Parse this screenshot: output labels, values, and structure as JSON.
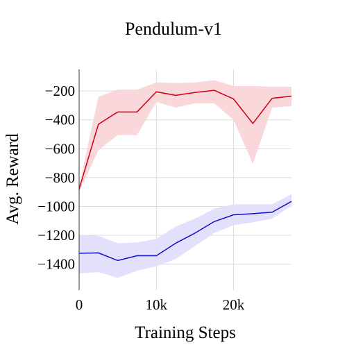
{
  "chart_data": {
    "type": "line",
    "title": "Pendulum-v1",
    "xlabel": "Training Steps",
    "ylabel": "Avg. Reward",
    "xlim": [
      0,
      27500
    ],
    "ylim": [
      -1580,
      -50
    ],
    "x_ticks": [
      0,
      10000,
      20000
    ],
    "x_tick_labels": [
      "0",
      "10k",
      "20k"
    ],
    "y_ticks": [
      -200,
      -400,
      -600,
      -800,
      -1000,
      -1200,
      -1400
    ],
    "y_tick_labels": [
      "−200",
      "−400",
      "−600",
      "−800",
      "−1000",
      "−1200",
      "−1400"
    ],
    "grid": true,
    "legend": "none",
    "series": [
      {
        "color": "#cc0011",
        "band_color": "#f9d7da",
        "x": [
          0,
          2500,
          5000,
          7500,
          10000,
          12500,
          15000,
          17500,
          20000,
          22500,
          25000,
          27500
        ],
        "y": [
          -880,
          -430,
          -345,
          -345,
          -205,
          -230,
          -210,
          -195,
          -255,
          -425,
          -250,
          -235
        ],
        "lower": [
          -900,
          -610,
          -505,
          -505,
          -275,
          -315,
          -285,
          -285,
          -400,
          -705,
          -315,
          -305
        ],
        "upper": [
          -860,
          -240,
          -190,
          -190,
          -140,
          -145,
          -140,
          -125,
          -165,
          -165,
          -170,
          -170
        ]
      },
      {
        "color": "#1010c8",
        "band_color": "#e3e0fb",
        "x": [
          0,
          2500,
          5000,
          7500,
          10000,
          12500,
          15000,
          17500,
          20000,
          22500,
          25000,
          27500
        ],
        "y": [
          -1325,
          -1322,
          -1375,
          -1342,
          -1342,
          -1255,
          -1185,
          -1105,
          -1058,
          -1050,
          -1040,
          -965
        ],
        "lower": [
          -1465,
          -1455,
          -1495,
          -1445,
          -1415,
          -1365,
          -1275,
          -1185,
          -1130,
          -1110,
          -1085,
          -995
        ],
        "upper": [
          -1195,
          -1205,
          -1255,
          -1250,
          -1225,
          -1140,
          -1085,
          -1015,
          -985,
          -985,
          -985,
          -915
        ]
      }
    ]
  }
}
